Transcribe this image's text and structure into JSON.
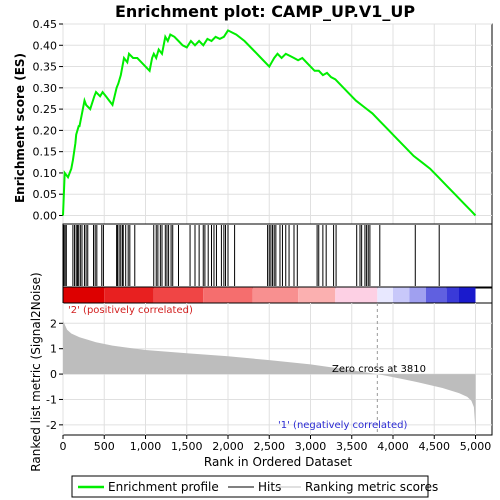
{
  "chart_data": {
    "type": "line",
    "title": "Enrichment plot: CAMP_UP.V1_UP",
    "xlabel": "Rank in Ordered Dataset",
    "ylabel_top": "Enrichment score (ES)",
    "ylabel_bottom": "Ranked list metric (Signal2Noise)",
    "xlim": [
      0,
      5200
    ],
    "es_ylim": [
      -0.02,
      0.45
    ],
    "metric_ylim": [
      -2.4,
      2.8
    ],
    "x_ticks": [
      0,
      500,
      1000,
      1500,
      2000,
      2500,
      3000,
      3500,
      4000,
      4500,
      5000
    ],
    "x_tick_labels": [
      "0",
      "500",
      "1,000",
      "1,500",
      "2,000",
      "2,500",
      "3,000",
      "3,500",
      "4,000",
      "4,500",
      "5,000"
    ],
    "es_ticks": [
      0.0,
      0.05,
      0.1,
      0.15,
      0.2,
      0.25,
      0.3,
      0.35,
      0.4,
      0.45
    ],
    "es_tick_labels": [
      "0.00",
      "0.05",
      "0.10",
      "0.15",
      "0.20",
      "0.25",
      "0.30",
      "0.35",
      "0.40",
      "0.45"
    ],
    "metric_ticks": [
      -2,
      -1,
      0,
      1,
      2
    ],
    "metric_tick_labels": [
      "-2",
      "-1",
      "0",
      "1",
      "2"
    ],
    "series": [
      {
        "name": "Enrichment profile",
        "color": "#00ee00",
        "x": [
          0,
          20,
          60,
          100,
          120,
          150,
          160,
          190,
          200,
          230,
          260,
          280,
          330,
          380,
          400,
          450,
          480,
          520,
          560,
          600,
          650,
          670,
          700,
          720,
          740,
          780,
          800,
          850,
          900,
          950,
          1000,
          1050,
          1080,
          1100,
          1130,
          1160,
          1200,
          1240,
          1270,
          1300,
          1350,
          1400,
          1450,
          1500,
          1550,
          1600,
          1650,
          1700,
          1750,
          1800,
          1850,
          1900,
          1950,
          2000,
          2050,
          2100,
          2200,
          2300,
          2400,
          2500,
          2530,
          2560,
          2600,
          2650,
          2700,
          2750,
          2800,
          2850,
          2900,
          3000,
          3050,
          3100,
          3150,
          3200,
          3250,
          3300,
          3350,
          3450,
          3550,
          3650,
          3750,
          3850,
          3950,
          4050,
          4150,
          4250,
          4350,
          4450,
          4550,
          4650,
          4750,
          4850,
          4950,
          5000
        ],
        "y": [
          0.0,
          0.1,
          0.09,
          0.11,
          0.13,
          0.17,
          0.19,
          0.21,
          0.21,
          0.24,
          0.27,
          0.26,
          0.25,
          0.28,
          0.29,
          0.28,
          0.29,
          0.28,
          0.27,
          0.26,
          0.3,
          0.31,
          0.33,
          0.35,
          0.37,
          0.36,
          0.38,
          0.37,
          0.37,
          0.36,
          0.35,
          0.34,
          0.37,
          0.38,
          0.37,
          0.39,
          0.38,
          0.42,
          0.41,
          0.425,
          0.42,
          0.41,
          0.4,
          0.395,
          0.41,
          0.4,
          0.41,
          0.4,
          0.415,
          0.41,
          0.42,
          0.415,
          0.42,
          0.435,
          0.43,
          0.425,
          0.41,
          0.39,
          0.37,
          0.35,
          0.36,
          0.37,
          0.38,
          0.37,
          0.38,
          0.375,
          0.37,
          0.365,
          0.37,
          0.35,
          0.34,
          0.34,
          0.33,
          0.335,
          0.325,
          0.32,
          0.31,
          0.29,
          0.27,
          0.255,
          0.24,
          0.22,
          0.2,
          0.18,
          0.16,
          0.14,
          0.125,
          0.11,
          0.09,
          0.07,
          0.05,
          0.03,
          0.01,
          0.0
        ]
      }
    ],
    "hits": [
      10,
      25,
      40,
      120,
      140,
      160,
      175,
      190,
      210,
      230,
      260,
      280,
      300,
      370,
      390,
      410,
      470,
      490,
      650,
      660,
      680,
      700,
      720,
      730,
      760,
      790,
      810,
      870,
      1100,
      1130,
      1150,
      1180,
      1200,
      1240,
      1260,
      1280,
      1310,
      1330,
      1400,
      1540,
      1600,
      1650,
      1700,
      1720,
      1760,
      1800,
      1830,
      1860,
      1920,
      1950,
      1970,
      2000,
      2080,
      2480,
      2500,
      2520,
      2540,
      2560,
      2580,
      2630,
      2660,
      2700,
      2740,
      2800,
      2840,
      3080,
      3100,
      3150,
      3190,
      3280,
      3310,
      3560,
      3600,
      3620,
      3660,
      3680,
      3700,
      3720,
      3840,
      4270,
      4560
    ],
    "metric_curve": {
      "x": [
        0,
        50,
        100,
        200,
        300,
        400,
        600,
        800,
        1000,
        1500,
        2000,
        2500,
        3000,
        3500,
        3810,
        4000,
        4300,
        4600,
        4800,
        4900,
        4950,
        4980,
        5000
      ],
      "y": [
        2.1,
        1.75,
        1.6,
        1.45,
        1.35,
        1.25,
        1.12,
        1.03,
        0.95,
        0.82,
        0.7,
        0.55,
        0.38,
        0.15,
        0.0,
        -0.12,
        -0.32,
        -0.55,
        -0.75,
        -0.9,
        -1.05,
        -1.3,
        -2.2
      ]
    },
    "zero_cross": 3810,
    "zero_cross_label": "Zero cross at 3810",
    "pos_label": "'2' (positively correlated)",
    "neg_label": "'1' (negatively correlated)",
    "legend": [
      {
        "label": "Enrichment profile",
        "kind": "line",
        "color": "#00ee00"
      },
      {
        "label": "Hits",
        "kind": "line",
        "color": "#000000"
      },
      {
        "label": "Ranking metric scores",
        "kind": "line",
        "color": "#c0c0c0"
      }
    ],
    "colorbar_segments": [
      {
        "from": 0,
        "to": 500,
        "color": "#dd0000"
      },
      {
        "from": 500,
        "to": 1100,
        "color": "#e82020"
      },
      {
        "from": 1100,
        "to": 1700,
        "color": "#f04545"
      },
      {
        "from": 1700,
        "to": 2300,
        "color": "#f56e6e"
      },
      {
        "from": 2300,
        "to": 2850,
        "color": "#f89090"
      },
      {
        "from": 2850,
        "to": 3300,
        "color": "#fbb0b0"
      },
      {
        "from": 3300,
        "to": 3810,
        "color": "#fdd0e4"
      },
      {
        "from": 3810,
        "to": 4000,
        "color": "#e8e8ff"
      },
      {
        "from": 4000,
        "to": 4200,
        "color": "#c8c8fa"
      },
      {
        "from": 4200,
        "to": 4400,
        "color": "#a0a0f0"
      },
      {
        "from": 4400,
        "to": 4650,
        "color": "#6060e0"
      },
      {
        "from": 4650,
        "to": 4800,
        "color": "#3a3ad8"
      },
      {
        "from": 4800,
        "to": 5000,
        "color": "#1a1acc"
      }
    ]
  }
}
